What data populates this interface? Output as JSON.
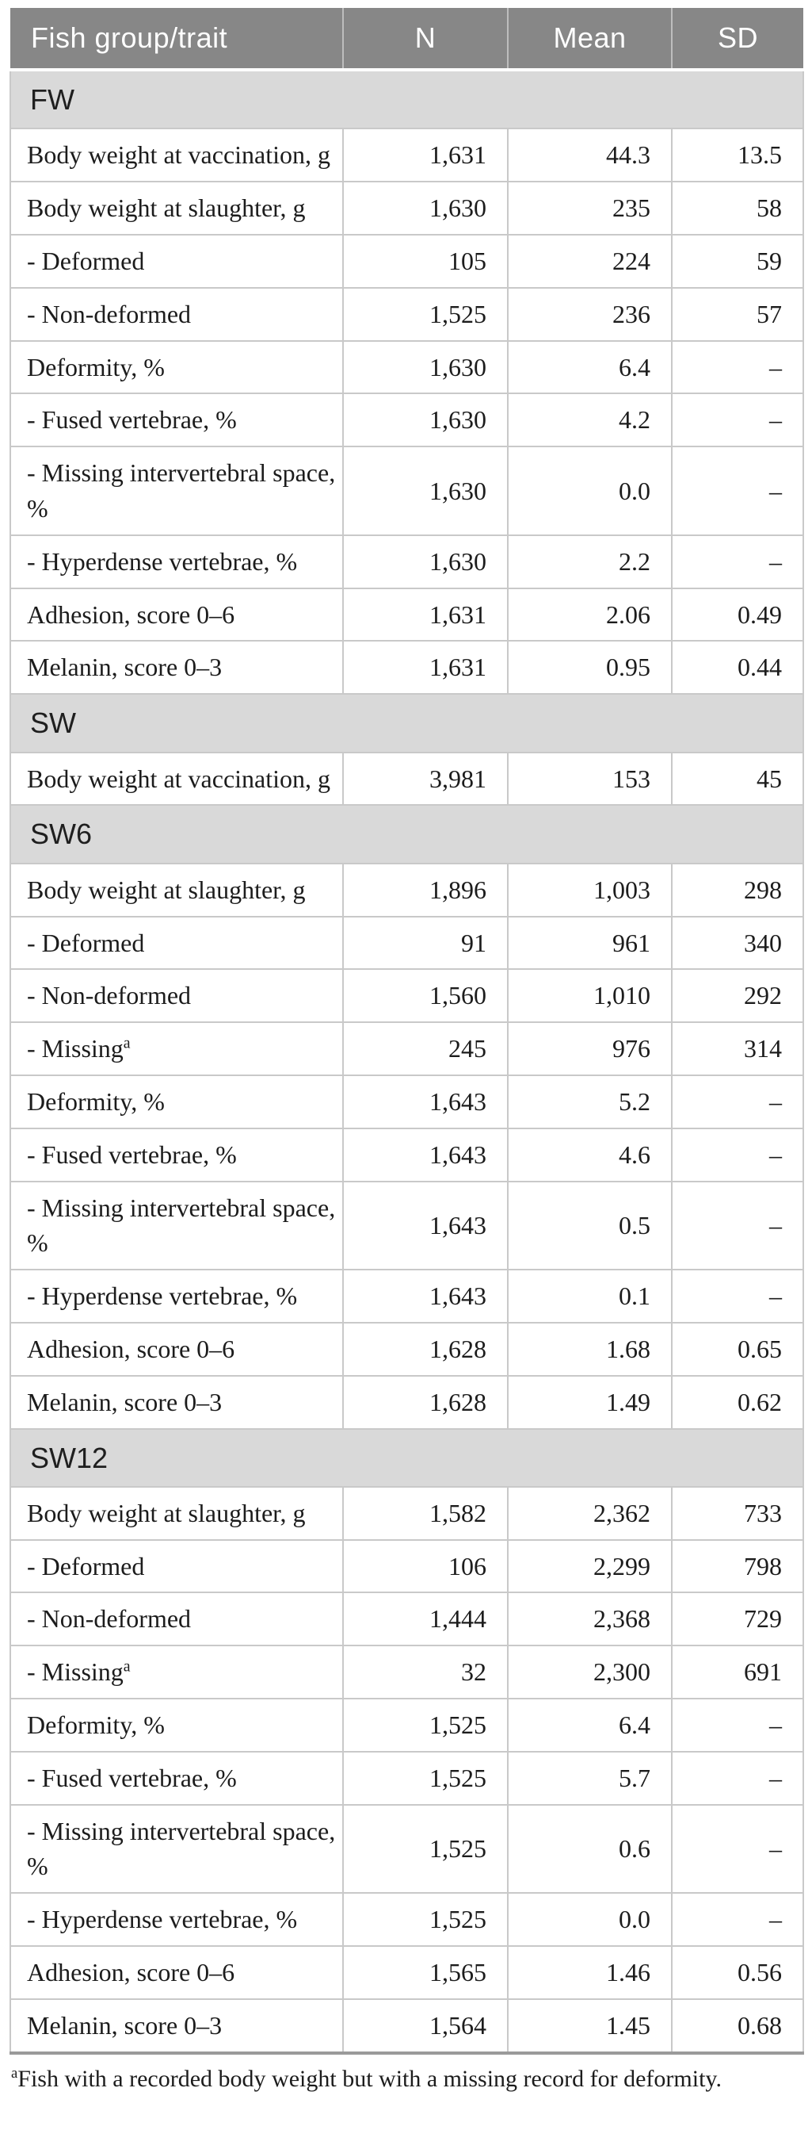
{
  "colors": {
    "header_bg": "#878787",
    "header_text": "#ffffff",
    "section_bg": "#d9d9d9",
    "row_border": "#c9c9c9",
    "body_text": "#1c1c1c",
    "table_bottom": "#9a9a9a"
  },
  "table": {
    "columns": [
      "Fish group/trait",
      "N",
      "Mean",
      "SD"
    ],
    "sections": [
      {
        "label": "FW",
        "rows": [
          {
            "label": "Body weight at vaccination, g",
            "n": "1,631",
            "mean": "44.3",
            "sd": "13.5"
          },
          {
            "label": "Body weight at slaughter, g",
            "n": "1,630",
            "mean": "235",
            "sd": "58"
          },
          {
            "label": "- Deformed",
            "n": "105",
            "mean": "224",
            "sd": "59"
          },
          {
            "label": "- Non-deformed",
            "n": "1,525",
            "mean": "236",
            "sd": "57"
          },
          {
            "label": "Deformity, %",
            "n": "1,630",
            "mean": "6.4",
            "sd": "–"
          },
          {
            "label": "- Fused vertebrae, %",
            "n": "1,630",
            "mean": "4.2",
            "sd": "–"
          },
          {
            "label": "- Missing intervertebral space, %",
            "n": "1,630",
            "mean": "0.0",
            "sd": "–"
          },
          {
            "label": "- Hyperdense vertebrae, %",
            "n": "1,630",
            "mean": "2.2",
            "sd": "–"
          },
          {
            "label": "Adhesion, score 0–6",
            "n": "1,631",
            "mean": "2.06",
            "sd": "0.49"
          },
          {
            "label": "Melanin, score 0–3",
            "n": "1,631",
            "mean": "0.95",
            "sd": "0.44"
          }
        ]
      },
      {
        "label": "SW",
        "rows": [
          {
            "label": "Body weight at vaccination, g",
            "n": "3,981",
            "mean": "153",
            "sd": "45"
          }
        ]
      },
      {
        "label": "SW6",
        "rows": [
          {
            "label": "Body weight at slaughter, g",
            "n": "1,896",
            "mean": "1,003",
            "sd": "298"
          },
          {
            "label": "- Deformed",
            "n": "91",
            "mean": "961",
            "sd": "340"
          },
          {
            "label": "- Non-deformed",
            "n": "1,560",
            "mean": "1,010",
            "sd": "292"
          },
          {
            "label": "- Missing",
            "sup": "a",
            "n": "245",
            "mean": "976",
            "sd": "314"
          },
          {
            "label": "Deformity, %",
            "n": "1,643",
            "mean": "5.2",
            "sd": "–"
          },
          {
            "label": "- Fused vertebrae, %",
            "n": "1,643",
            "mean": "4.6",
            "sd": "–"
          },
          {
            "label": "- Missing intervertebral space, %",
            "n": "1,643",
            "mean": "0.5",
            "sd": "–"
          },
          {
            "label": "- Hyperdense vertebrae, %",
            "n": "1,643",
            "mean": "0.1",
            "sd": "–"
          },
          {
            "label": "Adhesion, score 0–6",
            "n": "1,628",
            "mean": "1.68",
            "sd": "0.65"
          },
          {
            "label": "Melanin, score 0–3",
            "n": "1,628",
            "mean": "1.49",
            "sd": "0.62"
          }
        ]
      },
      {
        "label": "SW12",
        "rows": [
          {
            "label": "Body weight at slaughter, g",
            "n": "1,582",
            "mean": "2,362",
            "sd": "733"
          },
          {
            "label": "- Deformed",
            "n": "106",
            "mean": "2,299",
            "sd": "798"
          },
          {
            "label": "- Non-deformed",
            "n": "1,444",
            "mean": "2,368",
            "sd": "729"
          },
          {
            "label": "- Missing",
            "sup": "a",
            "n": "32",
            "mean": "2,300",
            "sd": "691"
          },
          {
            "label": "Deformity, %",
            "n": "1,525",
            "mean": "6.4",
            "sd": "–"
          },
          {
            "label": "- Fused vertebrae, %",
            "n": "1,525",
            "mean": "5.7",
            "sd": "–"
          },
          {
            "label": "- Missing intervertebral space, %",
            "n": "1,525",
            "mean": "0.6",
            "sd": "–"
          },
          {
            "label": "- Hyperdense vertebrae, %",
            "n": "1,525",
            "mean": "0.0",
            "sd": "–"
          },
          {
            "label": "Adhesion, score 0–6",
            "n": "1,565",
            "mean": "1.46",
            "sd": "0.56"
          },
          {
            "label": "Melanin, score 0–3",
            "n": "1,564",
            "mean": "1.45",
            "sd": "0.68"
          }
        ]
      }
    ],
    "footnote": {
      "marker": "a",
      "text": "Fish with a recorded body weight but with a missing record for deformity."
    }
  }
}
